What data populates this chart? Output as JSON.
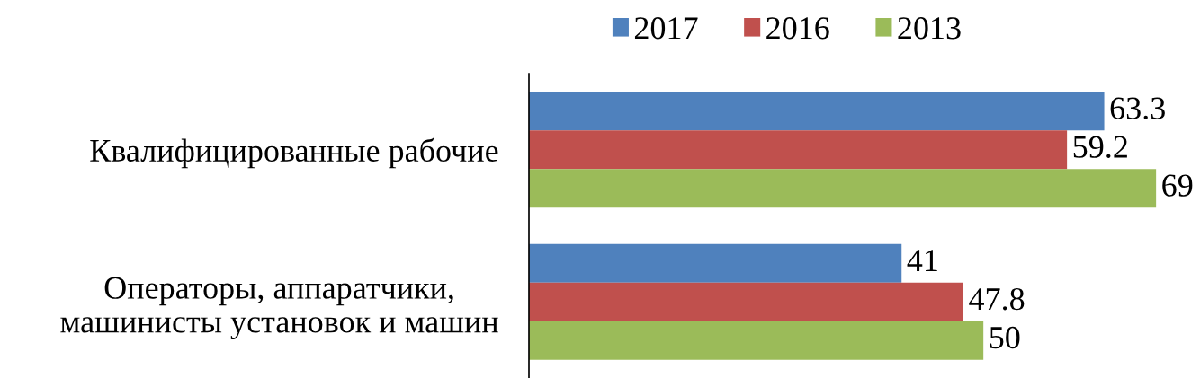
{
  "chart_data": {
    "type": "bar",
    "orientation": "horizontal",
    "categories": [
      "Квалифицированные рабочие",
      "Операторы, аппаратчики,\nмашинисты установок и машин"
    ],
    "series": [
      {
        "name": "2017",
        "color": "#4f81bd",
        "values": [
          63.3,
          41
        ]
      },
      {
        "name": "2016",
        "color": "#c0504d",
        "values": [
          59.2,
          47.8
        ]
      },
      {
        "name": "2013",
        "color": "#9bbb59",
        "values": [
          69,
          50
        ]
      }
    ],
    "data_labels": true,
    "legend": "top",
    "tick_labels": "y",
    "grid": false
  }
}
